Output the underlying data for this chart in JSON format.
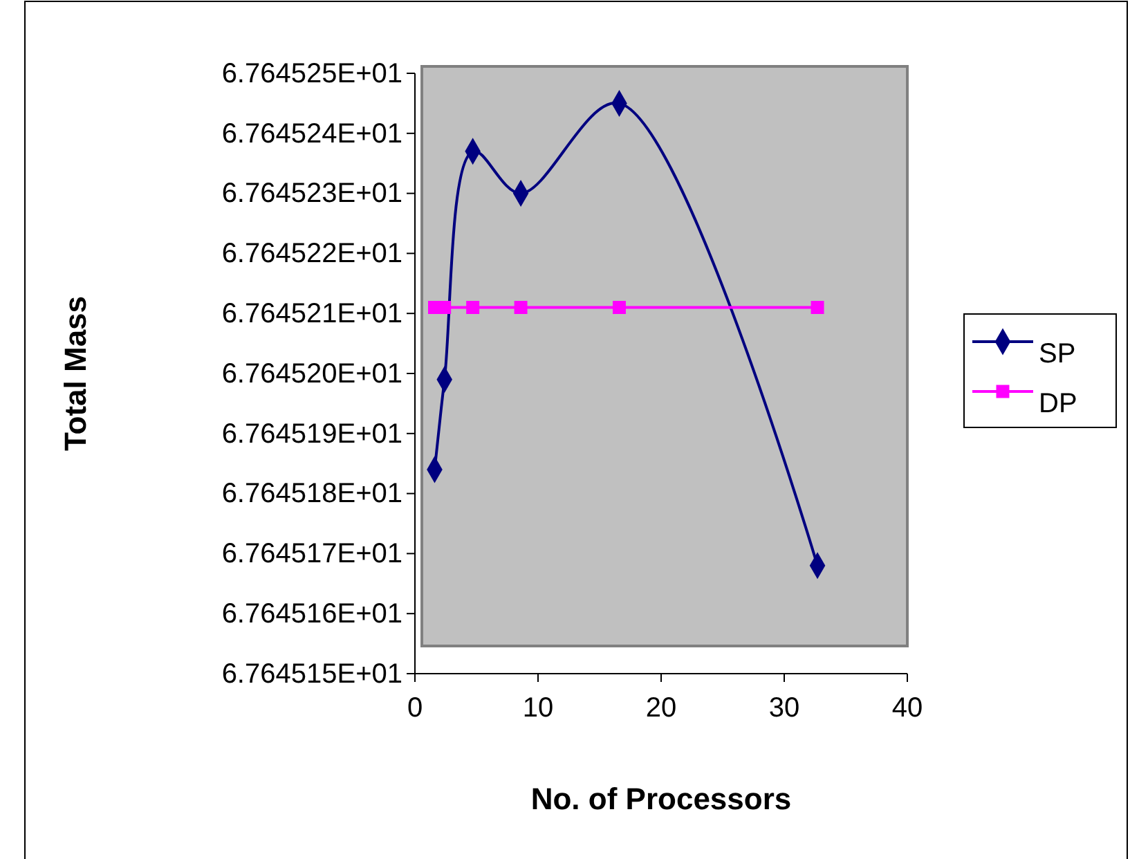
{
  "chart_data": {
    "type": "line",
    "xlabel": "No. of Processors",
    "ylabel": "Total Mass",
    "x": [
      1.6,
      2.4,
      4.7,
      8.6,
      16.6,
      32.7
    ],
    "series": [
      {
        "name": "SP",
        "color": "#000080",
        "marker": "diamond",
        "values": [
          67.645184,
          67.645199,
          67.645237,
          67.64523,
          67.645245,
          67.645168
        ]
      },
      {
        "name": "DP",
        "color": "#ff00ff",
        "marker": "square",
        "values": [
          67.645211,
          67.645211,
          67.645211,
          67.645211,
          67.645211,
          67.645211
        ]
      }
    ],
    "xlim": [
      0,
      40
    ],
    "xticks": [
      0,
      10,
      20,
      30,
      40
    ],
    "ylim": [
      67.64515,
      67.64525
    ],
    "yticks": [
      {
        "value": 67.64515,
        "label": "6.764515E+01"
      },
      {
        "value": 67.64516,
        "label": "6.764516E+01"
      },
      {
        "value": 67.64517,
        "label": "6.764517E+01"
      },
      {
        "value": 67.64518,
        "label": "6.764518E+01"
      },
      {
        "value": 67.64519,
        "label": "6.764519E+01"
      },
      {
        "value": 67.6452,
        "label": "6.764520E+01"
      },
      {
        "value": 67.64521,
        "label": "6.764521E+01"
      },
      {
        "value": 67.64522,
        "label": "6.764522E+01"
      },
      {
        "value": 67.64523,
        "label": "6.764523E+01"
      },
      {
        "value": 67.64524,
        "label": "6.764524E+01"
      },
      {
        "value": 67.64525,
        "label": "6.764525E+01"
      }
    ],
    "grid": false,
    "legend": "right"
  }
}
